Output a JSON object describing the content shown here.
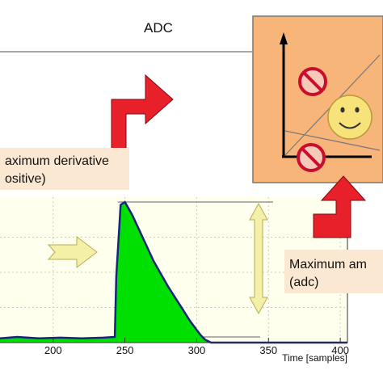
{
  "chart_data": {
    "type": "area",
    "title": "ADC",
    "xlabel": "Time [samples]",
    "ylabel": "",
    "x_ticks": [
      200,
      250,
      300,
      350,
      400
    ],
    "xlim": [
      163,
      405
    ],
    "ylim": [
      0,
      1
    ],
    "series": [
      {
        "fill": "#00e000",
        "x": [
          163,
          175,
          190,
          205,
          220,
          235,
          243,
          244,
          247,
          250,
          255,
          260,
          265,
          270,
          275,
          280,
          285,
          290,
          295,
          300,
          303,
          306,
          310
        ],
        "y": [
          0.03,
          0.04,
          0.03,
          0.035,
          0.03,
          0.035,
          0.04,
          0.47,
          0.98,
          1.0,
          0.91,
          0.8,
          0.69,
          0.58,
          0.49,
          0.4,
          0.32,
          0.24,
          0.16,
          0.09,
          0.05,
          0.02,
          0.0
        ]
      }
    ],
    "reference_lines_y": [
      1.0,
      0.04
    ],
    "annotations": {
      "max_derivative": [
        "aximum derivative",
        "ositive)"
      ],
      "max_amplitude": [
        "Maximum am",
        "(adc)"
      ]
    }
  },
  "inset": {
    "background": "#f7b57a",
    "smiley": "smiley-face-icon",
    "prohibited": "no-entry-icon"
  },
  "colors": {
    "arrow_red": "#e8202a",
    "arrow_yellow": "#f5f0a8",
    "annotation_bg": "#fbe8d2"
  }
}
